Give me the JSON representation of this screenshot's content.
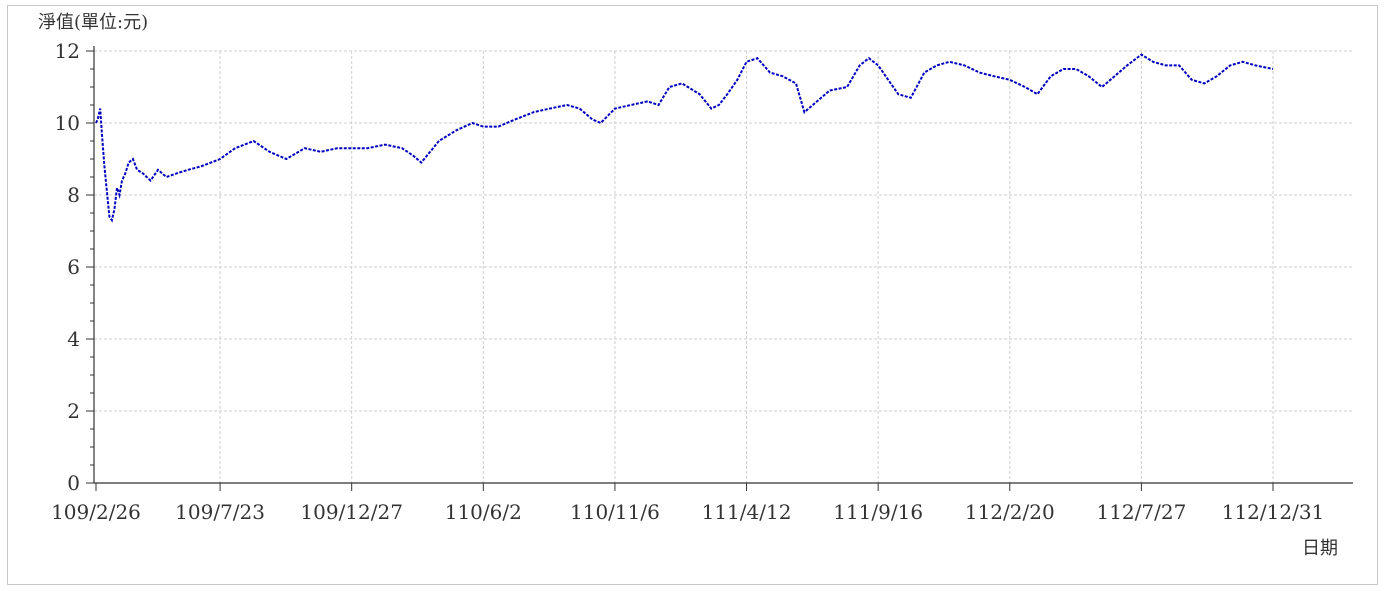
{
  "chart_data": {
    "type": "line",
    "ylabel": "淨值(單位:元)",
    "xlabel": "日期",
    "ylim": [
      0,
      12
    ],
    "yticks": [
      "0",
      "2",
      "4",
      "6",
      "8",
      "10",
      "12"
    ],
    "x_range": [
      "109/2/26",
      "112/12/31"
    ],
    "xticks": [
      "109/2/26",
      "109/7/23",
      "109/12/27",
      "110/6/2",
      "110/11/6",
      "111/4/12",
      "111/9/16",
      "112/2/20",
      "112/7/27",
      "112/12/31"
    ],
    "grid": true,
    "line_color": "#0000c0",
    "series": [
      {
        "points": [
          [
            "109/2/26",
            10.0
          ],
          [
            "109/2/28",
            10.1
          ],
          [
            "109/3/2",
            10.4
          ],
          [
            "109/3/4",
            9.7
          ],
          [
            "109/3/7",
            8.8
          ],
          [
            "109/3/10",
            8.1
          ],
          [
            "109/3/13",
            7.4
          ],
          [
            "109/3/16",
            7.3
          ],
          [
            "109/3/19",
            7.6
          ],
          [
            "109/3/22",
            8.2
          ],
          [
            "109/3/25",
            8.0
          ],
          [
            "109/3/28",
            8.4
          ],
          [
            "109/4/1",
            8.6
          ],
          [
            "109/4/5",
            8.9
          ],
          [
            "109/4/10",
            9.0
          ],
          [
            "109/4/15",
            8.7
          ],
          [
            "109/4/22",
            8.6
          ],
          [
            "109/5/1",
            8.4
          ],
          [
            "109/5/10",
            8.7
          ],
          [
            "109/5/20",
            8.5
          ],
          [
            "109/6/1",
            8.6
          ],
          [
            "109/6/15",
            8.7
          ],
          [
            "109/7/1",
            8.8
          ],
          [
            "109/7/23",
            9.0
          ],
          [
            "109/8/10",
            9.3
          ],
          [
            "109/9/1",
            9.5
          ],
          [
            "109/9/20",
            9.2
          ],
          [
            "109/10/10",
            9.0
          ],
          [
            "109/11/1",
            9.3
          ],
          [
            "109/11/20",
            9.2
          ],
          [
            "109/12/10",
            9.3
          ],
          [
            "109/12/27",
            9.3
          ],
          [
            "110/1/15",
            9.3
          ],
          [
            "110/2/5",
            9.4
          ],
          [
            "110/2/25",
            9.3
          ],
          [
            "110/3/10",
            9.1
          ],
          [
            "110/3/20",
            8.9
          ],
          [
            "110/4/10",
            9.5
          ],
          [
            "110/5/1",
            9.8
          ],
          [
            "110/5/20",
            10.0
          ],
          [
            "110/6/2",
            9.9
          ],
          [
            "110/6/20",
            9.9
          ],
          [
            "110/7/10",
            10.1
          ],
          [
            "110/8/1",
            10.3
          ],
          [
            "110/8/20",
            10.4
          ],
          [
            "110/9/10",
            10.5
          ],
          [
            "110/9/25",
            10.4
          ],
          [
            "110/10/10",
            10.1
          ],
          [
            "110/10/20",
            10.0
          ],
          [
            "110/11/6",
            10.4
          ],
          [
            "110/11/25",
            10.5
          ],
          [
            "110/12/15",
            10.6
          ],
          [
            "110/12/28",
            10.5
          ],
          [
            "111/1/10",
            11.0
          ],
          [
            "111/1/25",
            11.1
          ],
          [
            "111/2/15",
            10.8
          ],
          [
            "111/3/1",
            10.4
          ],
          [
            "111/3/10",
            10.5
          ],
          [
            "111/3/20",
            10.8
          ],
          [
            "111/4/1",
            11.2
          ],
          [
            "111/4/12",
            11.7
          ],
          [
            "111/4/25",
            11.8
          ],
          [
            "111/5/10",
            11.4
          ],
          [
            "111/5/25",
            11.3
          ],
          [
            "111/6/10",
            11.1
          ],
          [
            "111/6/20",
            10.3
          ],
          [
            "111/7/5",
            10.6
          ],
          [
            "111/7/20",
            10.9
          ],
          [
            "111/8/10",
            11.0
          ],
          [
            "111/8/25",
            11.6
          ],
          [
            "111/9/5",
            11.8
          ],
          [
            "111/9/16",
            11.6
          ],
          [
            "111/9/28",
            11.2
          ],
          [
            "111/10/10",
            10.8
          ],
          [
            "111/10/25",
            10.7
          ],
          [
            "111/11/10",
            11.4
          ],
          [
            "111/11/25",
            11.6
          ],
          [
            "111/12/10",
            11.7
          ],
          [
            "111/12/28",
            11.6
          ],
          [
            "112/1/15",
            11.4
          ],
          [
            "112/2/1",
            11.3
          ],
          [
            "112/2/20",
            11.2
          ],
          [
            "112/3/10",
            11.0
          ],
          [
            "112/3/25",
            10.8
          ],
          [
            "112/4/10",
            11.3
          ],
          [
            "112/4/25",
            11.5
          ],
          [
            "112/5/10",
            11.5
          ],
          [
            "112/5/25",
            11.3
          ],
          [
            "112/6/10",
            11.0
          ],
          [
            "112/6/25",
            11.3
          ],
          [
            "112/7/10",
            11.6
          ],
          [
            "112/7/27",
            11.9
          ],
          [
            "112/8/10",
            11.7
          ],
          [
            "112/8/25",
            11.6
          ],
          [
            "112/9/10",
            11.6
          ],
          [
            "112/9/25",
            11.2
          ],
          [
            "112/10/10",
            11.1
          ],
          [
            "112/10/25",
            11.3
          ],
          [
            "112/11/10",
            11.6
          ],
          [
            "112/11/25",
            11.7
          ],
          [
            "112/12/10",
            11.6
          ],
          [
            "112/12/31",
            11.5
          ]
        ]
      }
    ]
  }
}
